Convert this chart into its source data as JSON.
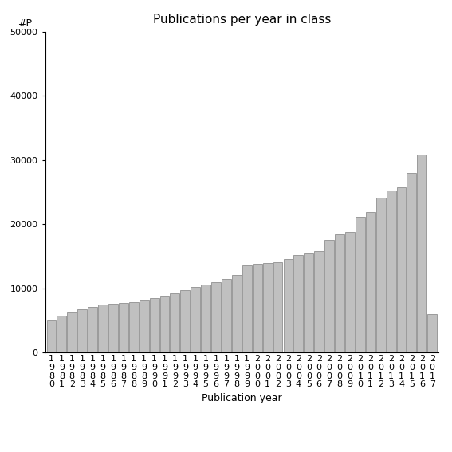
{
  "title": "Publications per year in class",
  "xlabel": "Publication year",
  "ylabel": "#P",
  "years": [
    1980,
    1981,
    1982,
    1983,
    1984,
    1985,
    1986,
    1987,
    1988,
    1989,
    1990,
    1991,
    1992,
    1993,
    1994,
    1995,
    1996,
    1997,
    1998,
    1999,
    2000,
    2001,
    2002,
    2003,
    2004,
    2005,
    2006,
    2007,
    2008,
    2009,
    2010,
    2011,
    2012,
    2013,
    2014,
    2015,
    2016,
    2017
  ],
  "values": [
    5000,
    5700,
    6200,
    6700,
    7100,
    7500,
    7600,
    7700,
    7900,
    8200,
    8500,
    8800,
    9200,
    9700,
    10200,
    10600,
    11000,
    11500,
    12100,
    13600,
    13800,
    13900,
    14100,
    14600,
    15200,
    15600,
    15800,
    17600,
    18400,
    18800,
    21200,
    21900,
    24100,
    25200,
    25800,
    28000,
    30800,
    6000
  ],
  "bar_color": "#c0c0c0",
  "bar_edge_color": "#808080",
  "ylim": [
    0,
    50000
  ],
  "yticks": [
    0,
    10000,
    20000,
    30000,
    40000,
    50000
  ],
  "background_color": "#ffffff",
  "title_fontsize": 11,
  "label_fontsize": 9,
  "tick_fontsize": 8
}
